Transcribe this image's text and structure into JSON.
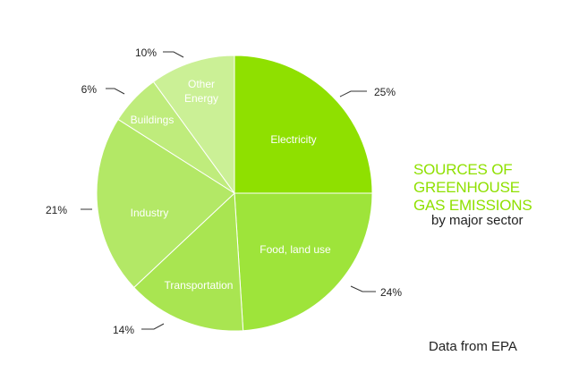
{
  "chart_data": {
    "type": "pie",
    "title_lines": [
      "SOURCES OF",
      "GREENHOUSE",
      "GAS EMISSIONS"
    ],
    "subtitle": "by major sector",
    "source": "Data from EPA",
    "start_angle_deg": -90,
    "direction": "clockwise",
    "slices": [
      {
        "label": "Electricity",
        "value": 25,
        "value_label": "25%",
        "color": "#8fe000"
      },
      {
        "label": "Food, land use",
        "value": 24,
        "value_label": "24%",
        "color": "#9ee43a"
      },
      {
        "label": "Transportation",
        "value": 14,
        "value_label": "14%",
        "color": "#a9e551"
      },
      {
        "label": "Industry",
        "value": 21,
        "value_label": "21%",
        "color": "#b3e866"
      },
      {
        "label": "Buildings",
        "value": 6,
        "value_label": "6%",
        "color": "#bfec7c"
      },
      {
        "label": "Other Energy",
        "value": 10,
        "value_label": "10%",
        "color": "#cbf096"
      }
    ],
    "colors": {
      "slice_divider": "#ffffff",
      "leader_line": "#333333",
      "outer_label": "#222222",
      "inner_label": "#ffffff"
    }
  }
}
